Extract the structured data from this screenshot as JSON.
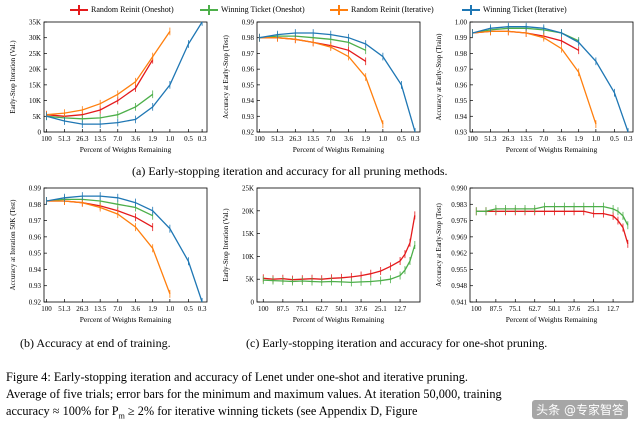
{
  "legend": [
    {
      "label": "Random Reinit (Oneshot)",
      "color": "#e41a1c"
    },
    {
      "label": "Winning Ticket (Oneshot)",
      "color": "#4daf4a"
    },
    {
      "label": "Random Reinit (Iterative)",
      "color": "#ff7f0e"
    },
    {
      "label": "Winning Ticket (Iterative)",
      "color": "#1f77b4"
    }
  ],
  "captions": {
    "a": "(a) Early-stopping iteration and accuracy for all pruning methods.",
    "b": "(b) Accuracy at end of training.",
    "c": "(c) Early-stopping iteration and accuracy for one-shot pruning."
  },
  "figure_caption": {
    "line1": "Figure 4: Early-stopping iteration and accuracy of Lenet under one-shot and iterative pruning.",
    "line2": "Average of five trials; error bars for the minimum and maximum values. At iteration 50,000, training",
    "line3": "accuracy ≈ 100% for P",
    "line3_sub": "m",
    "line3_rest": " ≥ 2% for iterative winning tickets (see Appendix D, Figure"
  },
  "watermark": "头条 @专家智答",
  "chart_data": [
    {
      "type": "line",
      "id": "a1",
      "xlabel": "Percent of Weights Remaining",
      "ylabel": "Early-Stop Iteration (Val.)",
      "x_ticks": [
        "100",
        "51.3",
        "26.3",
        "13.5",
        "7.0",
        "3.6",
        "1.9",
        "1.0",
        "0.5",
        "0.3"
      ],
      "y_ticks": [
        "0",
        "5K",
        "10K",
        "15K",
        "20K",
        "25K",
        "30K",
        "35K"
      ],
      "ylim": [
        0,
        35000
      ],
      "series": [
        {
          "name": "Random Reinit (Oneshot)",
          "x": [
            100,
            51.3,
            26.3,
            13.5,
            7.0,
            3.6,
            1.9
          ],
          "y": [
            5500,
            5000,
            5500,
            7000,
            10000,
            14000,
            23000
          ]
        },
        {
          "name": "Winning Ticket (Oneshot)",
          "x": [
            100,
            51.3,
            26.3,
            13.5,
            7.0,
            3.6,
            1.9
          ],
          "y": [
            5000,
            4500,
            4200,
            4500,
            5500,
            8000,
            12000
          ]
        },
        {
          "name": "Random Reinit (Iterative)",
          "x": [
            100,
            51.3,
            26.3,
            13.5,
            7.0,
            3.6,
            1.9,
            1.0
          ],
          "y": [
            5500,
            6000,
            7000,
            9000,
            12000,
            16000,
            24000,
            32000
          ]
        },
        {
          "name": "Winning Ticket (Iterative)",
          "x": [
            100,
            51.3,
            26.3,
            13.5,
            7.0,
            3.6,
            1.9,
            1.0,
            0.5,
            0.3
          ],
          "y": [
            5000,
            3500,
            2500,
            2500,
            3000,
            4000,
            8000,
            15000,
            28000,
            35000
          ]
        }
      ]
    },
    {
      "type": "line",
      "id": "a2",
      "xlabel": "Percent of Weights Remaining",
      "ylabel": "Accuracy at Early-Stop (Test)",
      "x_ticks": [
        "100",
        "51.3",
        "26.3",
        "13.5",
        "7.0",
        "3.6",
        "1.9",
        "1.0",
        "0.5",
        "0.3"
      ],
      "y_ticks": [
        "0.92",
        "0.93",
        "0.94",
        "0.95",
        "0.96",
        "0.97",
        "0.98",
        "0.99"
      ],
      "ylim": [
        0.92,
        0.99
      ],
      "series": [
        {
          "name": "Random Reinit (Oneshot)",
          "x": [
            100,
            51.3,
            26.3,
            13.5,
            7.0,
            3.6,
            1.9
          ],
          "y": [
            0.98,
            0.98,
            0.979,
            0.977,
            0.975,
            0.972,
            0.965
          ]
        },
        {
          "name": "Winning Ticket (Oneshot)",
          "x": [
            100,
            51.3,
            26.3,
            13.5,
            7.0,
            3.6,
            1.9
          ],
          "y": [
            0.98,
            0.981,
            0.981,
            0.98,
            0.979,
            0.977,
            0.972
          ]
        },
        {
          "name": "Random Reinit (Iterative)",
          "x": [
            100,
            51.3,
            26.3,
            13.5,
            7.0,
            3.6,
            1.9,
            1.0
          ],
          "y": [
            0.98,
            0.98,
            0.979,
            0.977,
            0.974,
            0.968,
            0.955,
            0.925
          ]
        },
        {
          "name": "Winning Ticket (Iterative)",
          "x": [
            100,
            51.3,
            26.3,
            13.5,
            7.0,
            3.6,
            1.9,
            1.0,
            0.5,
            0.3
          ],
          "y": [
            0.98,
            0.982,
            0.983,
            0.983,
            0.982,
            0.98,
            0.976,
            0.968,
            0.95,
            0.92
          ]
        }
      ]
    },
    {
      "type": "line",
      "id": "a3",
      "xlabel": "Percent of Weights Remaining",
      "ylabel": "Accuracy at Early-Stop (Train)",
      "x_ticks": [
        "100",
        "51.3",
        "26.3",
        "13.5",
        "7.0",
        "3.6",
        "1.9",
        "1.0",
        "0.5",
        "0.3"
      ],
      "y_ticks": [
        "0.93",
        "0.94",
        "0.95",
        "0.96",
        "0.97",
        "0.98",
        "0.99",
        "1.00"
      ],
      "ylim": [
        0.93,
        1.0
      ],
      "series": [
        {
          "name": "Random Reinit (Oneshot)",
          "x": [
            100,
            51.3,
            26.3,
            13.5,
            7.0,
            3.6,
            1.9
          ],
          "y": [
            0.993,
            0.994,
            0.994,
            0.993,
            0.991,
            0.988,
            0.982
          ]
        },
        {
          "name": "Winning Ticket (Oneshot)",
          "x": [
            100,
            51.3,
            26.3,
            13.5,
            7.0,
            3.6,
            1.9
          ],
          "y": [
            0.993,
            0.995,
            0.996,
            0.996,
            0.995,
            0.993,
            0.988
          ]
        },
        {
          "name": "Random Reinit (Iterative)",
          "x": [
            100,
            51.3,
            26.3,
            13.5,
            7.0,
            3.6,
            1.9,
            1.0
          ],
          "y": [
            0.993,
            0.994,
            0.994,
            0.993,
            0.99,
            0.983,
            0.968,
            0.935
          ]
        },
        {
          "name": "Winning Ticket (Iterative)",
          "x": [
            100,
            51.3,
            26.3,
            13.5,
            7.0,
            3.6,
            1.9,
            1.0,
            0.5,
            0.3
          ],
          "y": [
            0.993,
            0.996,
            0.997,
            0.997,
            0.996,
            0.993,
            0.987,
            0.975,
            0.955,
            0.93
          ]
        }
      ]
    },
    {
      "type": "line",
      "id": "b",
      "xlabel": "Percent of Weights Remaining",
      "ylabel": "Accuracy at Iteration 50K (Test)",
      "x_ticks": [
        "100",
        "51.3",
        "26.3",
        "13.5",
        "7.0",
        "3.6",
        "1.9",
        "1.0",
        "0.5",
        "0.3"
      ],
      "y_ticks": [
        "0.92",
        "0.93",
        "0.94",
        "0.95",
        "0.96",
        "0.97",
        "0.98",
        "0.99"
      ],
      "ylim": [
        0.92,
        0.99
      ],
      "series": [
        {
          "name": "Random Reinit (Oneshot)",
          "x": [
            100,
            51.3,
            26.3,
            13.5,
            7.0,
            3.6,
            1.9
          ],
          "y": [
            0.982,
            0.982,
            0.981,
            0.979,
            0.976,
            0.972,
            0.966
          ]
        },
        {
          "name": "Winning Ticket (Oneshot)",
          "x": [
            100,
            51.3,
            26.3,
            13.5,
            7.0,
            3.6,
            1.9
          ],
          "y": [
            0.982,
            0.983,
            0.983,
            0.982,
            0.98,
            0.978,
            0.973
          ]
        },
        {
          "name": "Random Reinit (Iterative)",
          "x": [
            100,
            51.3,
            26.3,
            13.5,
            7.0,
            3.6,
            1.9,
            1.0
          ],
          "y": [
            0.982,
            0.982,
            0.981,
            0.978,
            0.974,
            0.966,
            0.953,
            0.925
          ]
        },
        {
          "name": "Winning Ticket (Iterative)",
          "x": [
            100,
            51.3,
            26.3,
            13.5,
            7.0,
            3.6,
            1.9,
            1.0,
            0.5,
            0.3
          ],
          "y": [
            0.982,
            0.984,
            0.985,
            0.985,
            0.984,
            0.981,
            0.976,
            0.965,
            0.945,
            0.92
          ]
        }
      ]
    },
    {
      "type": "line",
      "id": "c1",
      "xlabel": "Percent of Weights Remaining",
      "ylabel": "Early-Stop Iteration (Val.)",
      "x_ticks": [
        "100",
        "87.5",
        "75.1",
        "62.7",
        "50.1",
        "37.6",
        "25.1",
        "12.7"
      ],
      "y_ticks": [
        "0",
        "5K",
        "10K",
        "15K",
        "20K",
        "25K"
      ],
      "ylim": [
        0,
        25000
      ],
      "series": [
        {
          "name": "Random Reinit (Oneshot)",
          "x": [
            100,
            93.8,
            87.5,
            81.3,
            75.1,
            68.9,
            62.7,
            56.4,
            50.1,
            43.8,
            37.6,
            31.4,
            25.1,
            18.9,
            12.7,
            9.6,
            6.4,
            3.3
          ],
          "y": [
            5200,
            5000,
            5100,
            4900,
            5000,
            5100,
            5000,
            5200,
            5300,
            5500,
            5800,
            6200,
            6800,
            7800,
            9000,
            10500,
            13000,
            19000
          ]
        },
        {
          "name": "Winning Ticket (Oneshot)",
          "x": [
            100,
            93.8,
            87.5,
            81.3,
            75.1,
            68.9,
            62.7,
            56.4,
            50.1,
            43.8,
            37.6,
            31.4,
            25.1,
            18.9,
            12.7,
            9.6,
            6.4,
            3.3
          ],
          "y": [
            4800,
            4700,
            4600,
            4500,
            4600,
            4500,
            4400,
            4500,
            4400,
            4300,
            4400,
            4500,
            4700,
            5000,
            5800,
            7000,
            9000,
            12500
          ]
        }
      ]
    },
    {
      "type": "line",
      "id": "c2",
      "xlabel": "Percent of Weights Remaining",
      "ylabel": "Accuracy at Early-Stop (Test)",
      "x_ticks": [
        "100",
        "87.5",
        "75.1",
        "62.7",
        "50.1",
        "37.6",
        "25.1",
        "12.7"
      ],
      "y_ticks": [
        "0.941",
        "0.948",
        "0.955",
        "0.962",
        "0.969",
        "0.976",
        "0.983",
        "0.990"
      ],
      "ylim": [
        0.941,
        0.99
      ],
      "series": [
        {
          "name": "Random Reinit (Oneshot)",
          "x": [
            100,
            93.8,
            87.5,
            81.3,
            75.1,
            68.9,
            62.7,
            56.4,
            50.1,
            43.8,
            37.6,
            31.4,
            25.1,
            18.9,
            12.7,
            9.6,
            6.4,
            3.3
          ],
          "y": [
            0.98,
            0.98,
            0.98,
            0.98,
            0.98,
            0.98,
            0.98,
            0.98,
            0.98,
            0.98,
            0.98,
            0.98,
            0.979,
            0.979,
            0.978,
            0.976,
            0.973,
            0.966
          ]
        },
        {
          "name": "Winning Ticket (Oneshot)",
          "x": [
            100,
            93.8,
            87.5,
            81.3,
            75.1,
            68.9,
            62.7,
            56.4,
            50.1,
            43.8,
            37.6,
            31.4,
            25.1,
            18.9,
            12.7,
            9.6,
            6.4,
            3.3
          ],
          "y": [
            0.98,
            0.98,
            0.981,
            0.981,
            0.981,
            0.981,
            0.981,
            0.982,
            0.982,
            0.982,
            0.982,
            0.982,
            0.982,
            0.982,
            0.981,
            0.98,
            0.978,
            0.974
          ]
        }
      ]
    }
  ]
}
